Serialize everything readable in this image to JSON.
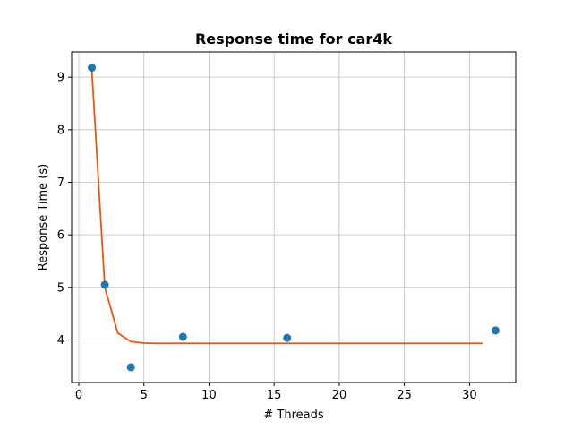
{
  "chart_data": {
    "type": "scatter",
    "title": "Response time for car4k",
    "xlabel": "# Threads",
    "ylabel": "Response Time (s)",
    "xlim": [
      -0.55,
      33.55
    ],
    "ylim": [
      3.19,
      9.48
    ],
    "xticks": [
      0,
      5,
      10,
      15,
      20,
      25,
      30
    ],
    "xtick_labels": [
      "0",
      "5",
      "10",
      "15",
      "20",
      "25",
      "30"
    ],
    "yticks": [
      4,
      5,
      6,
      7,
      8,
      9
    ],
    "ytick_labels": [
      "4",
      "5",
      "6",
      "7",
      "8",
      "9"
    ],
    "grid": true,
    "series": [
      {
        "name": "measured",
        "kind": "scatter",
        "color": "#1f77b4",
        "x": [
          1,
          2,
          4,
          8,
          16,
          32
        ],
        "y": [
          9.18,
          5.05,
          3.48,
          4.06,
          4.04,
          4.18
        ]
      },
      {
        "name": "fit",
        "kind": "line",
        "color": "#e8580c",
        "x": [
          1,
          2,
          3,
          4,
          5,
          6,
          7,
          8,
          9,
          10,
          11,
          12,
          13,
          14,
          15,
          16,
          17,
          18,
          19,
          20,
          21,
          22,
          23,
          24,
          25,
          26,
          27,
          28,
          29,
          30,
          31
        ],
        "y": [
          9.14,
          5.0,
          4.13,
          3.97,
          3.94,
          3.935,
          3.935,
          3.935,
          3.935,
          3.935,
          3.935,
          3.935,
          3.935,
          3.935,
          3.935,
          3.935,
          3.935,
          3.935,
          3.935,
          3.935,
          3.935,
          3.935,
          3.935,
          3.935,
          3.935,
          3.935,
          3.935,
          3.935,
          3.935,
          3.935,
          3.935
        ]
      }
    ]
  }
}
